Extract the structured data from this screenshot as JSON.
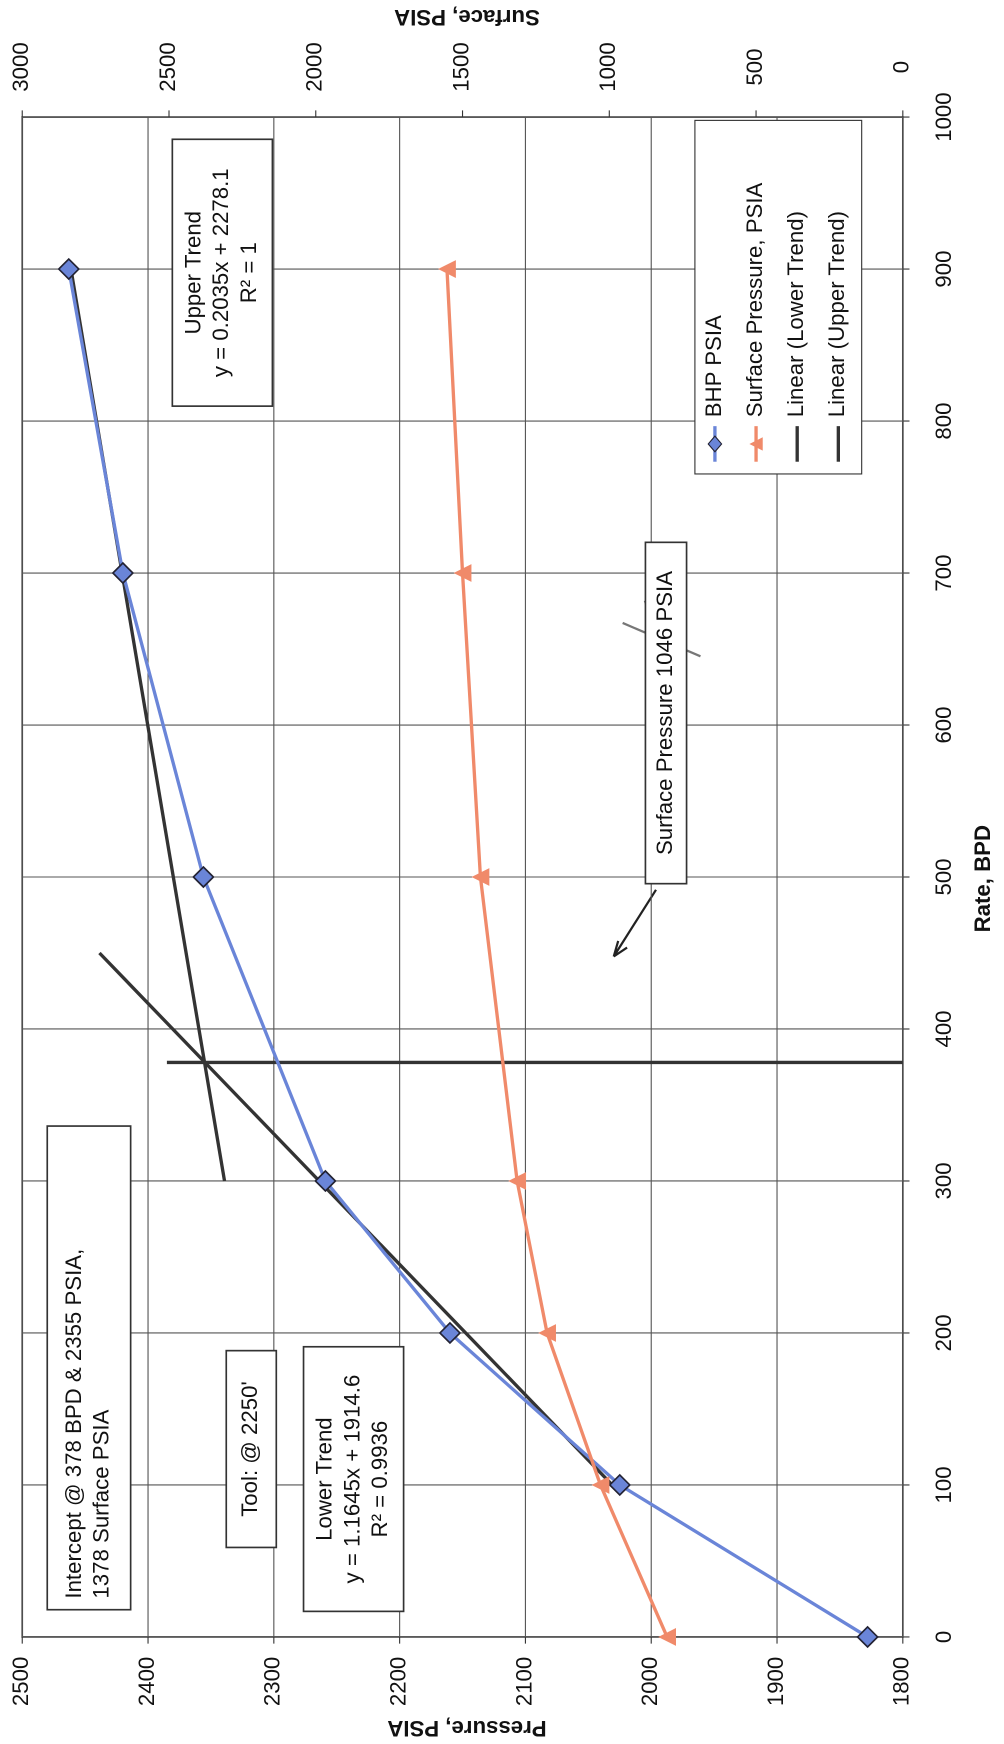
{
  "chart_data": {
    "type": "line",
    "x_label": "Rate, BPD",
    "y_label": "Pressure, PSIA",
    "y2_label": "Surface, PSIA",
    "x": [
      0,
      100,
      200,
      300,
      500,
      700,
      900
    ],
    "series": [
      {
        "name": "BHP PSIA",
        "color": "#6a85d8",
        "values": [
          1828,
          2025,
          2160,
          2259,
          2356,
          2420,
          2463
        ]
      },
      {
        "name": "Surface Pressure, PSIA",
        "color": "#f08a6a",
        "axis": "y2",
        "values": [
          803,
          1030,
          1212,
          1314,
          1439,
          1500,
          1553
        ]
      }
    ],
    "trendlines": [
      {
        "name": "Linear (Lower Trend)",
        "color": "#333333",
        "x": [
          100,
          450
        ],
        "y": [
          2031,
          2438.6
        ]
      },
      {
        "name": "Linear (Upper Trend)",
        "color": "#333333",
        "x": [
          300,
          900
        ],
        "y": [
          2339.2,
          2461.3
        ]
      }
    ],
    "intercept_line": {
      "x": 378,
      "y": [
        1800,
        2385
      ]
    },
    "xlim": [
      0,
      1000
    ],
    "xticks": [
      0,
      100,
      200,
      300,
      400,
      500,
      600,
      700,
      800,
      900,
      1000
    ],
    "ylim": [
      1800,
      2500
    ],
    "yticks": [
      1800,
      1900,
      2000,
      2100,
      2200,
      2300,
      2400,
      2500
    ],
    "y2lim": [
      0,
      3000
    ],
    "y2ticks": [
      0,
      500,
      1000,
      1500,
      2000,
      2500,
      3000
    ],
    "grid": true,
    "annotations": [
      {
        "lines": [
          "Upper Trend",
          "y = 0.2035x + 2278.1",
          "R² = 1"
        ]
      },
      {
        "lines": [
          "Lower Trend",
          "y = 1.1645x + 1914.6",
          "R² = 0.9936"
        ]
      },
      {
        "lines": [
          "Intercept @ 378 BPD & 2355 PSIA,",
          "1378 Surface PSIA"
        ]
      },
      {
        "lines": [
          "Tool: @ 2250'"
        ]
      },
      {
        "lines": [
          "Surface Pressure 1046 PSIA"
        ]
      }
    ]
  }
}
